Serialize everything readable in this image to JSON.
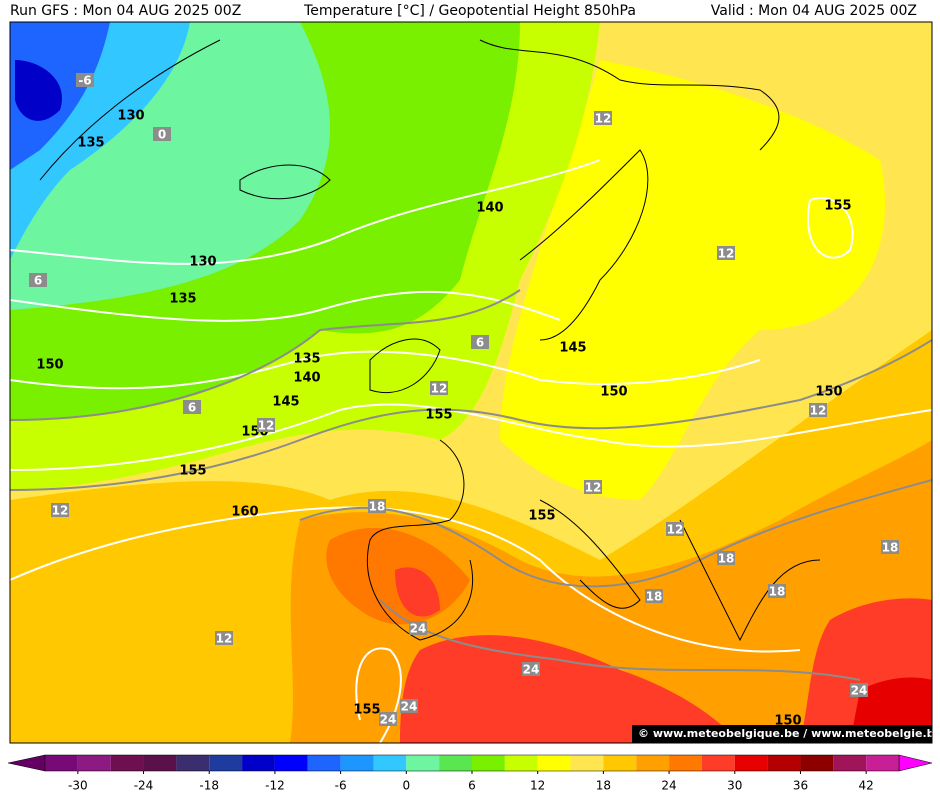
{
  "header": {
    "run": "Run GFS : Mon 04 AUG 2025 00Z",
    "title": "Temperature [°C] / Geopotential Height 850hPa",
    "valid": "Valid : Mon 04 AUG 2025 00Z"
  },
  "map": {
    "height_labels": [
      130,
      135,
      140,
      130,
      135,
      150,
      135,
      140,
      145,
      150,
      145,
      155,
      150,
      155,
      160,
      155,
      155,
      150,
      155,
      150
    ],
    "temperature_labels": [
      -6,
      0,
      6,
      6,
      6,
      12,
      12,
      12,
      12,
      12,
      12,
      12,
      12,
      12,
      18,
      18,
      18,
      18,
      18,
      24,
      24,
      24,
      24,
      24
    ],
    "credit": "© www.meteobelgique.be / www.meteobelgie.be"
  },
  "colorbar": {
    "levels": [
      -33,
      -30,
      -27,
      -24,
      -21,
      -18,
      -15,
      -12,
      -9,
      -6,
      -3,
      0,
      3,
      6,
      9,
      12,
      15,
      18,
      21,
      24,
      27,
      30,
      33,
      36,
      39,
      42,
      45
    ],
    "colors": [
      "#780a78",
      "#8c1a82",
      "#6e1050",
      "#5a1048",
      "#3a2e6e",
      "#1e3ca0",
      "#0000c8",
      "#0000ff",
      "#1e64ff",
      "#1e96ff",
      "#32c8ff",
      "#6ef5a0",
      "#5ae650",
      "#78f000",
      "#c8ff00",
      "#ffff00",
      "#ffe650",
      "#ffc800",
      "#ffa000",
      "#ff7800",
      "#ff3c28",
      "#e60000",
      "#b40000",
      "#8c0000",
      "#a0145a",
      "#c81e96"
    ],
    "under_color": "#640064",
    "over_color": "#ff00ff",
    "ticks": [
      -30,
      -24,
      -18,
      -12,
      -6,
      0,
      6,
      12,
      18,
      24,
      30,
      36,
      42
    ]
  }
}
